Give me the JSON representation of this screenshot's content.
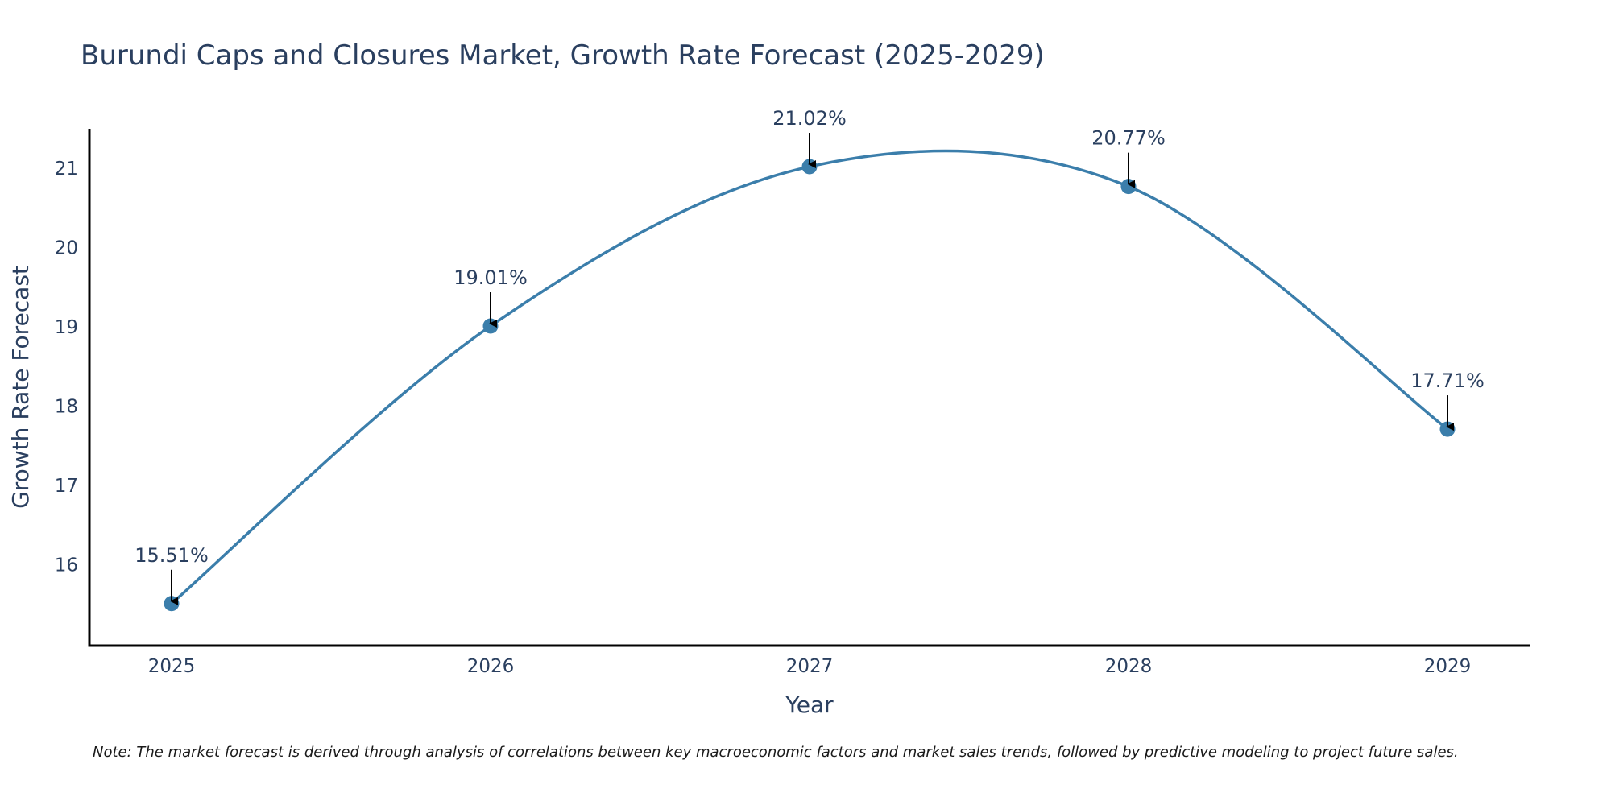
{
  "chart_data": {
    "type": "line",
    "title": "Burundi Caps and Closures Market, Growth Rate Forecast (2025-2029)",
    "xlabel": "Year",
    "ylabel": "Growth Rate Forecast",
    "categories": [
      "2025",
      "2026",
      "2027",
      "2028",
      "2029"
    ],
    "series": [
      {
        "name": "Growth Rate Forecast",
        "values": [
          15.51,
          19.01,
          21.02,
          20.77,
          17.71
        ],
        "color": "#3b7eab"
      }
    ],
    "data_labels": [
      "15.51%",
      "19.01%",
      "21.02%",
      "20.77%",
      "17.71%"
    ],
    "yticks": [
      "16",
      "17",
      "18",
      "19",
      "20",
      "21"
    ],
    "ylim": [
      15,
      21.5
    ],
    "grid": false,
    "line_shape": "spline",
    "annotation_arrows": true,
    "note": "Note: The market forecast is derived through analysis of correlations between key macroeconomic factors and market sales trends, followed by predictive modeling to project future sales."
  },
  "colors": {
    "line": "#3b7eab",
    "marker": "#3b7eab",
    "text": "#2a3f5f",
    "axis": "#000000",
    "arrow": "#000000"
  }
}
